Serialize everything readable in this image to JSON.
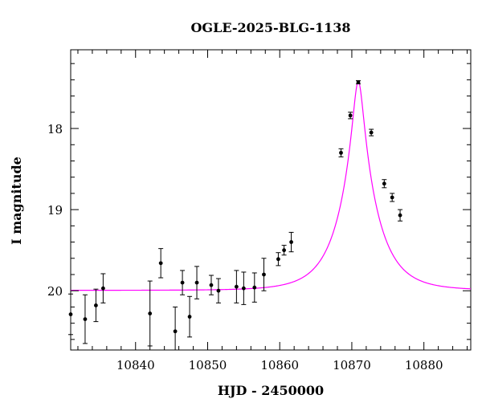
{
  "chart_data": {
    "type": "scatter",
    "title": "OGLE-2025-BLG-1138",
    "xlabel": "HJD - 2450000",
    "ylabel": "I magnitude",
    "xlim": [
      10831,
      10886.5
    ],
    "ylim": [
      20.73,
      17.03
    ],
    "y_inverted": true,
    "grid": false,
    "x_ticks": [
      10840,
      10850,
      10860,
      10870,
      10880
    ],
    "y_ticks": [
      18,
      19,
      20
    ],
    "colors": {
      "points": "#000000",
      "model": "#ff00ff"
    },
    "series": [
      {
        "kind": "points_with_errorbars",
        "x": [
          10831.0,
          10833.0,
          10834.5,
          10835.5,
          10842.0,
          10843.5,
          10845.5,
          10846.5,
          10847.5,
          10848.5,
          10850.5,
          10851.5,
          10854.0,
          10855.0,
          10856.5,
          10857.8,
          10859.8,
          10860.6,
          10861.6,
          10868.5,
          10869.8,
          10870.9,
          10872.7,
          10874.5,
          10875.6,
          10876.7
        ],
        "y": [
          20.29,
          20.35,
          20.18,
          19.97,
          20.28,
          19.66,
          20.5,
          19.9,
          20.32,
          19.9,
          19.93,
          20.0,
          19.95,
          19.97,
          19.96,
          19.8,
          19.61,
          19.5,
          19.4,
          18.3,
          17.84,
          17.43,
          18.05,
          18.68,
          18.85,
          19.07
        ],
        "err": [
          0.25,
          0.3,
          0.2,
          0.18,
          0.4,
          0.18,
          0.3,
          0.15,
          0.25,
          0.2,
          0.12,
          0.15,
          0.2,
          0.2,
          0.18,
          0.2,
          0.08,
          0.06,
          0.12,
          0.05,
          0.04,
          0.02,
          0.04,
          0.05,
          0.05,
          0.07
        ]
      },
      {
        "kind": "model_curve",
        "peak_x": 10870.9,
        "peak_mag": 17.42,
        "baseline_mag": 19.995,
        "tE_days": 4.5,
        "u0": 0.15
      }
    ]
  }
}
